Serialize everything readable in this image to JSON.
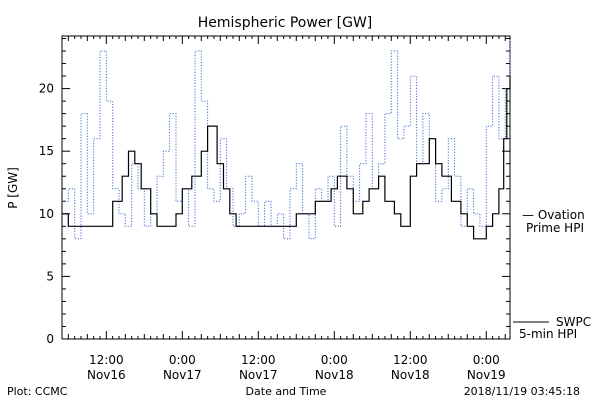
{
  "chart_data": {
    "type": "line",
    "title": "Hemispheric Power [GW]",
    "xlabel": "Date and Time",
    "ylabel": "P [GW]",
    "ylim": [
      0,
      24.2
    ],
    "xlim": [
      "2018-11-16 05:00",
      "2018-11-19 03:45"
    ],
    "y_ticks": [
      0,
      5,
      10,
      15,
      20
    ],
    "x_ticks": [
      {
        "x": "2018-11-16 12:00",
        "time": "12:00",
        "date": "Nov16"
      },
      {
        "x": "2018-11-17 00:00",
        "time": "0:00",
        "date": "Nov17"
      },
      {
        "x": "2018-11-17 12:00",
        "time": "12:00",
        "date": "Nov17"
      },
      {
        "x": "2018-11-18 00:00",
        "time": "0:00",
        "date": "Nov18"
      },
      {
        "x": "2018-11-18 12:00",
        "time": "12:00",
        "date": "Nov18"
      },
      {
        "x": "2018-11-19 00:00",
        "time": "0:00",
        "date": "Nov19"
      }
    ],
    "grid": false,
    "series": [
      {
        "name": "SWPC 5-min HPI",
        "color": "#000000",
        "style": "solid",
        "x": [
          "2018-11-16 05:00",
          "2018-11-16 06:00",
          "2018-11-16 08:00",
          "2018-11-16 10:00",
          "2018-11-16 11:30",
          "2018-11-16 13:00",
          "2018-11-16 14:30",
          "2018-11-16 15:30",
          "2018-11-16 16:30",
          "2018-11-16 17:30",
          "2018-11-16 19:00",
          "2018-11-16 20:00",
          "2018-11-16 21:30",
          "2018-11-16 23:00",
          "2018-11-17 00:00",
          "2018-11-17 01:30",
          "2018-11-17 03:00",
          "2018-11-17 04:00",
          "2018-11-17 05:30",
          "2018-11-17 06:30",
          "2018-11-17 07:30",
          "2018-11-17 08:30",
          "2018-11-17 10:00",
          "2018-11-17 11:30",
          "2018-11-17 13:00",
          "2018-11-17 14:30",
          "2018-11-17 15:30",
          "2018-11-17 17:00",
          "2018-11-17 18:00",
          "2018-11-17 19:30",
          "2018-11-17 21:00",
          "2018-11-17 22:30",
          "2018-11-17 23:30",
          "2018-11-18 00:30",
          "2018-11-18 02:00",
          "2018-11-18 03:00",
          "2018-11-18 04:30",
          "2018-11-18 05:30",
          "2018-11-18 07:00",
          "2018-11-18 08:00",
          "2018-11-18 09:30",
          "2018-11-18 10:30",
          "2018-11-18 12:00",
          "2018-11-18 13:00",
          "2018-11-18 14:00",
          "2018-11-18 15:00",
          "2018-11-18 16:00",
          "2018-11-18 17:00",
          "2018-11-18 18:30",
          "2018-11-18 20:00",
          "2018-11-18 21:00",
          "2018-11-18 22:00",
          "2018-11-18 23:00",
          "2018-11-19 00:00",
          "2018-11-19 01:00",
          "2018-11-19 02:00",
          "2018-11-19 02:45",
          "2018-11-19 03:15",
          "2018-11-19 03:45"
        ],
        "y": [
          10,
          9,
          9,
          9,
          9,
          11,
          13,
          15,
          14,
          12,
          10,
          9,
          9,
          10,
          12,
          13,
          15,
          17,
          14,
          12,
          10,
          9,
          9,
          9,
          9,
          9,
          9,
          9,
          10,
          10,
          11,
          11,
          12,
          13,
          12,
          10,
          11,
          12,
          13,
          11,
          10,
          9,
          13,
          14,
          14,
          16,
          14,
          13,
          11,
          10,
          9,
          8,
          8,
          9,
          10,
          12,
          16,
          20,
          21
        ]
      },
      {
        "name": "Ovation Prime HPI",
        "color": "#3f6fd3",
        "style": "dotted",
        "x": [
          "2018-11-16 05:00",
          "2018-11-16 06:00",
          "2018-11-16 07:00",
          "2018-11-16 08:00",
          "2018-11-16 09:00",
          "2018-11-16 10:00",
          "2018-11-16 11:00",
          "2018-11-16 12:00",
          "2018-11-16 13:00",
          "2018-11-16 14:00",
          "2018-11-16 15:00",
          "2018-11-16 16:00",
          "2018-11-16 17:00",
          "2018-11-16 18:00",
          "2018-11-16 19:00",
          "2018-11-16 20:00",
          "2018-11-16 21:00",
          "2018-11-16 22:00",
          "2018-11-16 23:00",
          "2018-11-17 00:00",
          "2018-11-17 01:00",
          "2018-11-17 02:00",
          "2018-11-17 03:00",
          "2018-11-17 04:00",
          "2018-11-17 05:00",
          "2018-11-17 06:00",
          "2018-11-17 07:00",
          "2018-11-17 08:00",
          "2018-11-17 09:00",
          "2018-11-17 10:00",
          "2018-11-17 11:00",
          "2018-11-17 12:00",
          "2018-11-17 13:00",
          "2018-11-17 14:00",
          "2018-11-17 15:00",
          "2018-11-17 16:00",
          "2018-11-17 17:00",
          "2018-11-17 18:00",
          "2018-11-17 19:00",
          "2018-11-17 20:00",
          "2018-11-17 21:00",
          "2018-11-17 22:00",
          "2018-11-17 23:00",
          "2018-11-18 00:00",
          "2018-11-18 01:00",
          "2018-11-18 02:00",
          "2018-11-18 03:00",
          "2018-11-18 04:00",
          "2018-11-18 05:00",
          "2018-11-18 06:00",
          "2018-11-18 07:00",
          "2018-11-18 08:00",
          "2018-11-18 09:00",
          "2018-11-18 10:00",
          "2018-11-18 11:00",
          "2018-11-18 12:00",
          "2018-11-18 13:00",
          "2018-11-18 14:00",
          "2018-11-18 15:00",
          "2018-11-18 16:00",
          "2018-11-18 17:00",
          "2018-11-18 18:00",
          "2018-11-18 19:00",
          "2018-11-18 20:00",
          "2018-11-18 21:00",
          "2018-11-18 22:00",
          "2018-11-18 23:00",
          "2018-11-19 00:00",
          "2018-11-19 01:00",
          "2018-11-19 02:00",
          "2018-11-19 03:00",
          "2018-11-19 03:45"
        ],
        "y": [
          11,
          12,
          8,
          18,
          10,
          16,
          23,
          19,
          12,
          10,
          9,
          14,
          12,
          9,
          10,
          13,
          15,
          18,
          11,
          12,
          9,
          23,
          19,
          12,
          11,
          16,
          12,
          9,
          10,
          13,
          11,
          9,
          11,
          9,
          10,
          8,
          12,
          14,
          10,
          8,
          12,
          11,
          13,
          9,
          17,
          13,
          11,
          14,
          18,
          12,
          14,
          18,
          23,
          16,
          17,
          21,
          14,
          18,
          16,
          11,
          12,
          16,
          13,
          9,
          12,
          10,
          9,
          17,
          21,
          16,
          20,
          24
        ]
      }
    ],
    "legend": [
      {
        "line_label": "— Ovation",
        "label": "Prime HPI",
        "color": "#3f6fd3"
      },
      {
        "line_label": "SWPC",
        "label": "5-min HPI",
        "color": "#000000"
      }
    ],
    "footer": {
      "left": "Plot: CCMC",
      "center": "Date and Time",
      "right": "2018/11/19 03:45:18"
    }
  }
}
